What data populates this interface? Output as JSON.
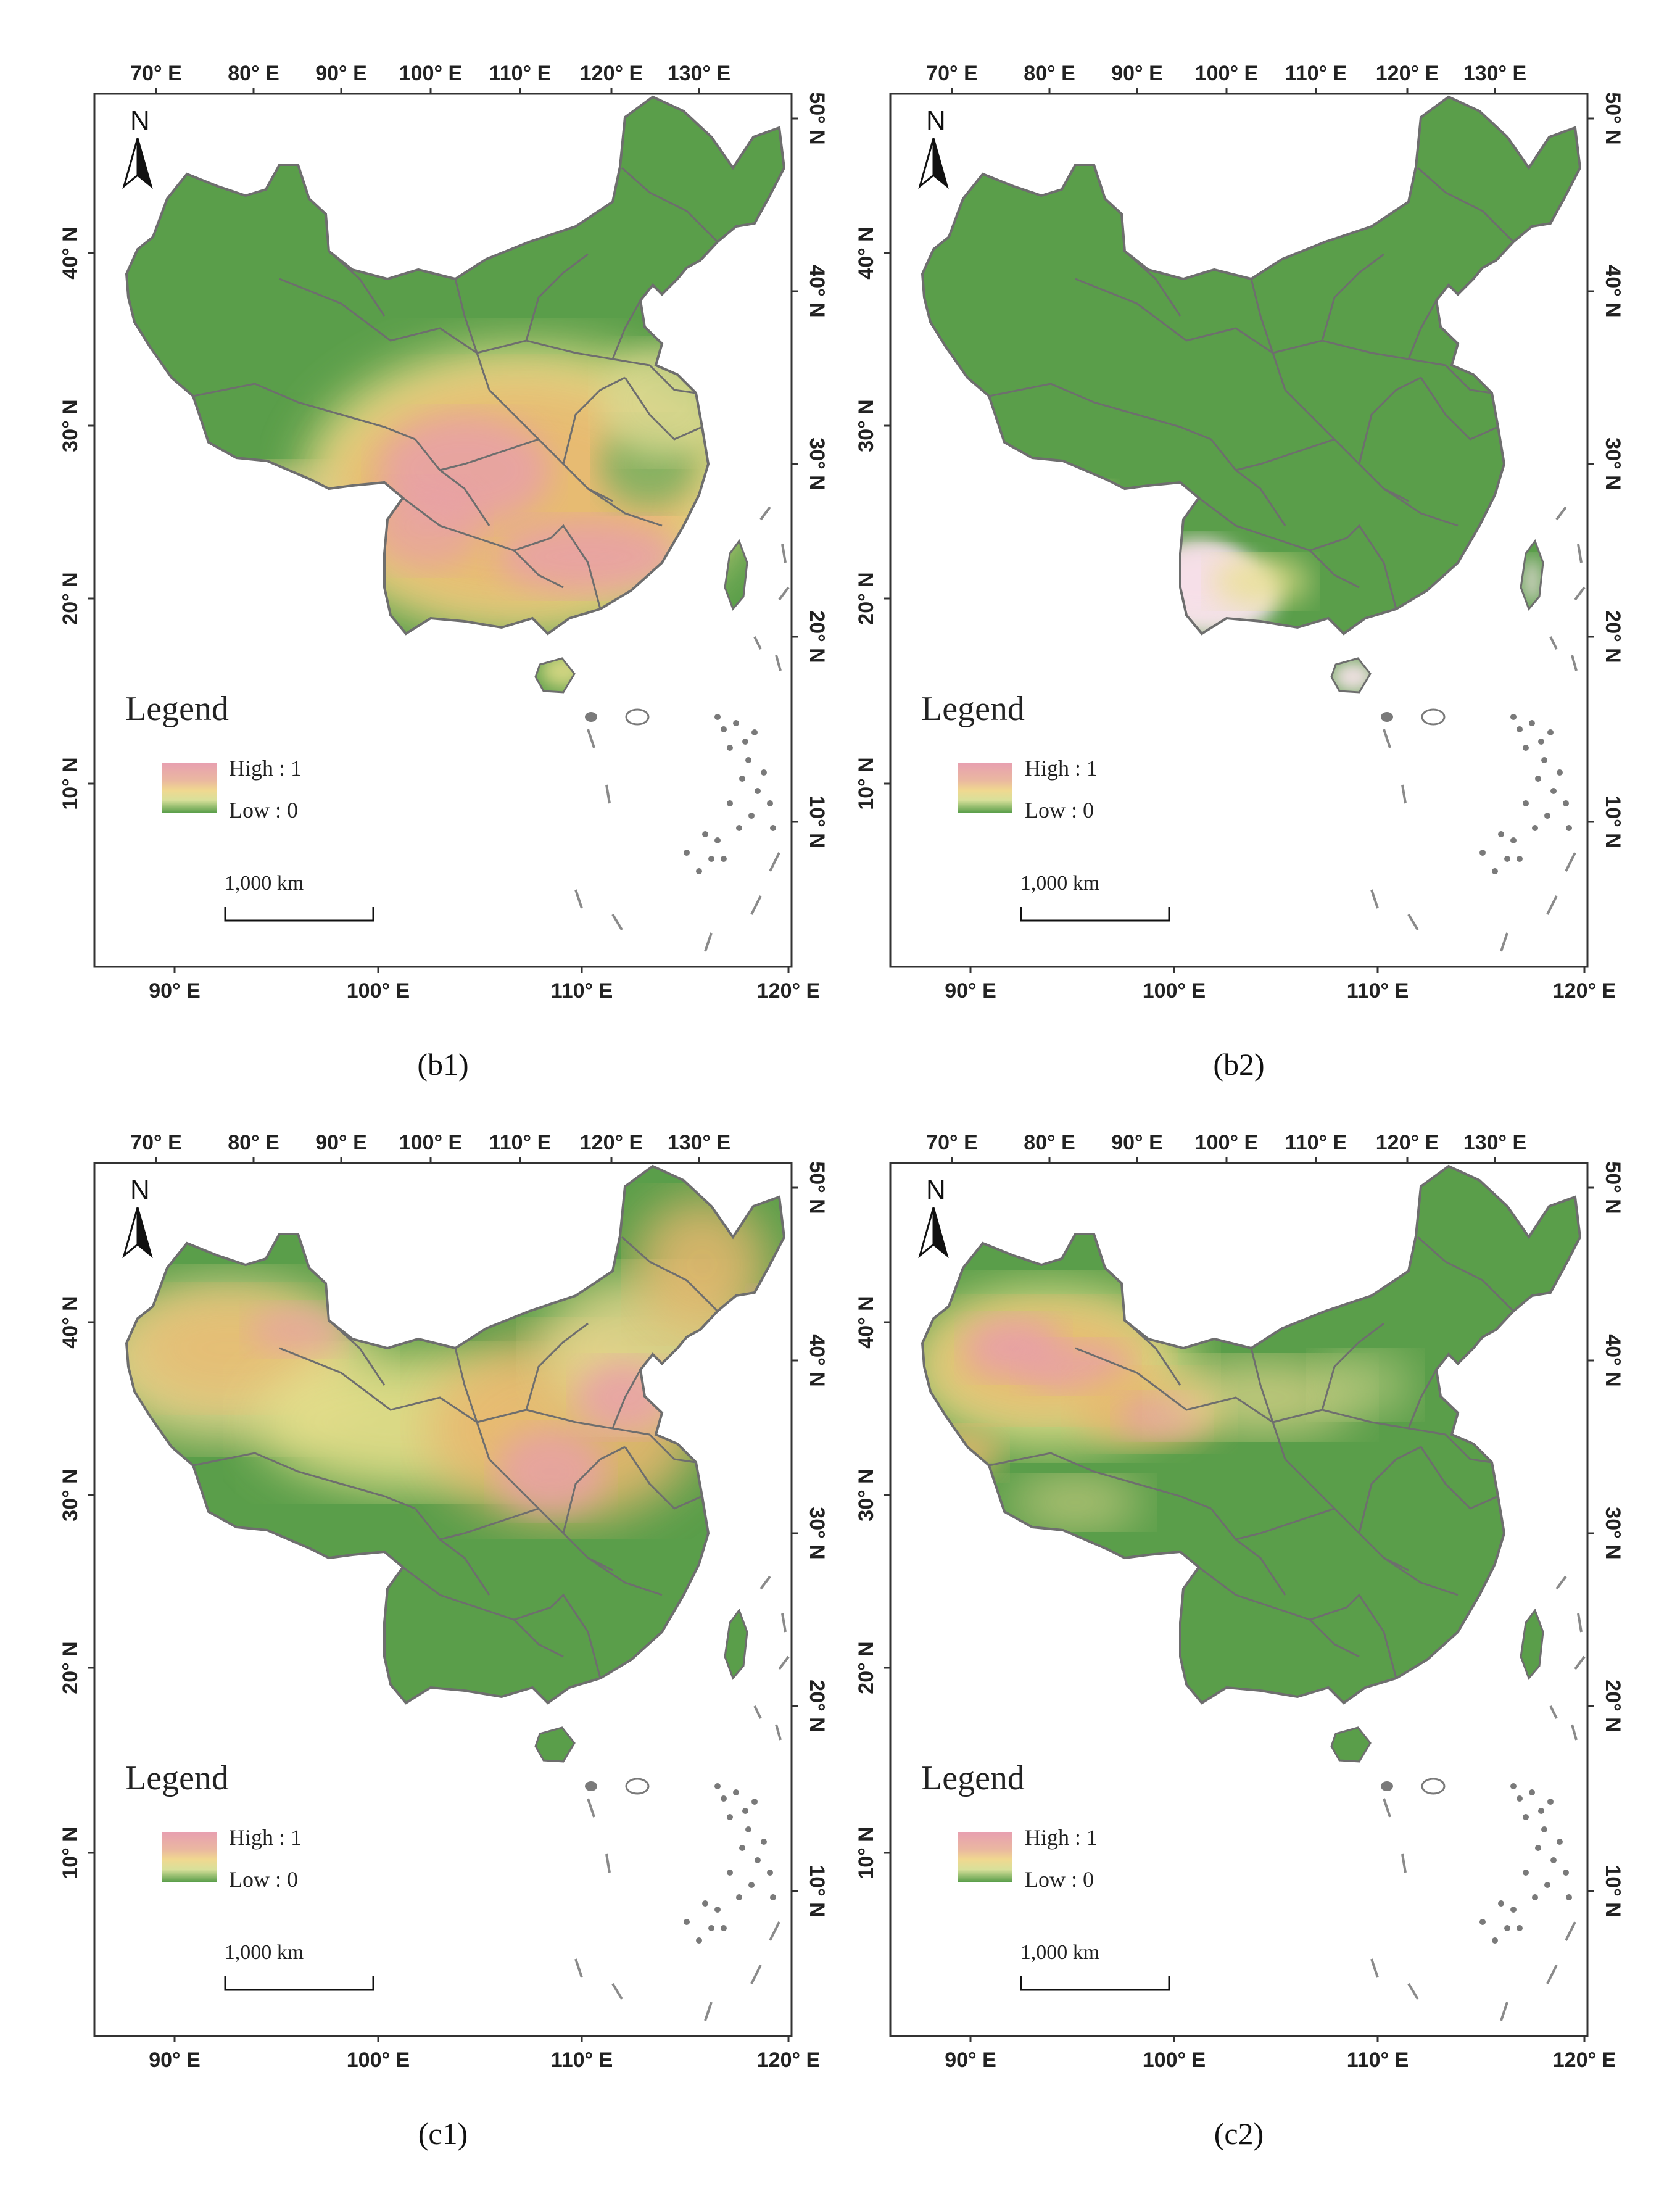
{
  "legend": {
    "title": "Legend",
    "high_label": "High : 1",
    "low_label": "Low : 0"
  },
  "scale_bar": {
    "label": "1,000 km"
  },
  "north_arrow": {
    "label": "N"
  },
  "colors": {
    "low": "#5a9e4a",
    "mid": "#e8e08c",
    "orange": "#e8b870",
    "high": "#e8a0a8",
    "peak": "#fbe6ee",
    "border": "#6e6e6e",
    "frame": "#333333"
  },
  "axes": {
    "top_lon": [
      "70° E",
      "80° E",
      "90° E",
      "100° E",
      "110° E",
      "120° E",
      "130° E"
    ],
    "bottom_lon": [
      "90° E",
      "100° E",
      "110° E",
      "120° E"
    ],
    "left_lat": [
      "40° N",
      "30° N",
      "20° N",
      "10° N"
    ],
    "right_lat": [
      "50° N",
      "40° N",
      "30° N",
      "20° N",
      "10° N"
    ]
  },
  "panels": [
    {
      "caption": "(b1)",
      "hotspot": "south"
    },
    {
      "caption": "(b2)",
      "hotspot": "yunnan"
    },
    {
      "caption": "(c1)",
      "hotspot": "north"
    },
    {
      "caption": "(c2)",
      "hotspot": "northwest"
    }
  ]
}
